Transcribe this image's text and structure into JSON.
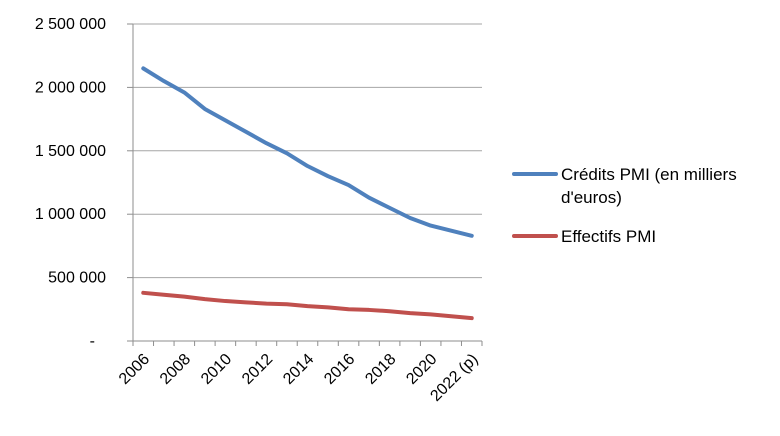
{
  "chart_data": {
    "type": "line",
    "categories": [
      "2006",
      "2007",
      "2008",
      "2009",
      "2010",
      "2011",
      "2012",
      "2013",
      "2014",
      "2015",
      "2016",
      "2017",
      "2018",
      "2019",
      "2020",
      "2021",
      "2022 (p)"
    ],
    "x_label_every": 2,
    "series": [
      {
        "name": "Crédits PMI (en milliers d'euros)",
        "color": "#4F81BD",
        "values": [
          2150000,
          2050000,
          1960000,
          1830000,
          1740000,
          1650000,
          1560000,
          1480000,
          1380000,
          1300000,
          1230000,
          1130000,
          1050000,
          970000,
          910000,
          870000,
          830000
        ]
      },
      {
        "name": "Effectifs PMI",
        "color": "#C0504D",
        "values": [
          380000,
          365000,
          350000,
          330000,
          315000,
          305000,
          295000,
          290000,
          275000,
          265000,
          250000,
          245000,
          235000,
          220000,
          210000,
          195000,
          180000
        ]
      }
    ],
    "ylim": [
      0,
      2500000
    ],
    "y_ticks": [
      {
        "value": 0,
        "label": "-"
      },
      {
        "value": 500000,
        "label": "500 000"
      },
      {
        "value": 1000000,
        "label": "1 000 000"
      },
      {
        "value": 1500000,
        "label": "1 500 000"
      },
      {
        "value": 2000000,
        "label": "2 000 000"
      },
      {
        "value": 2500000,
        "label": "2 500 000"
      }
    ],
    "grid": true,
    "legend_position": "right",
    "colors": {
      "gridline": "#A6A6A6",
      "axis": "#8E8E8E",
      "label": "#000000",
      "background": "#FFFFFF"
    }
  }
}
